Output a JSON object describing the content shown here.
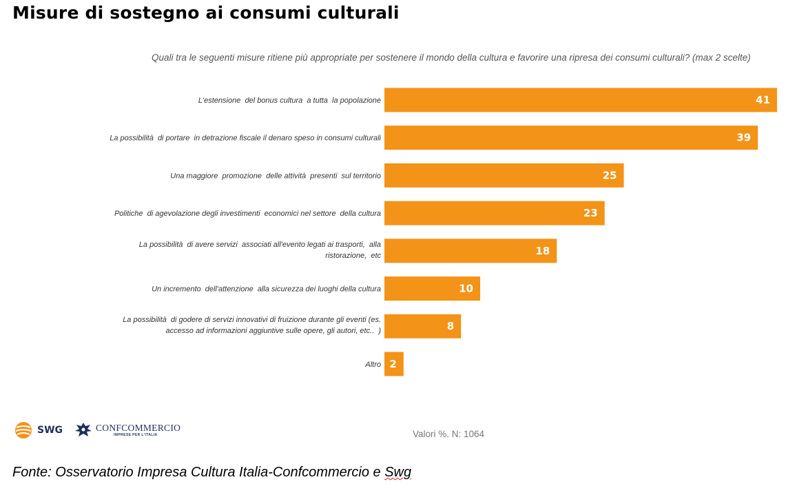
{
  "title": "Misure di sostegno ai consumi culturali",
  "question": "Quali tra le seguenti misure ritiene più appropriate per sostenere il mondo della cultura e favorire una ripresa dei consumi culturali? (max 2 scelte)",
  "chart_data": {
    "type": "bar",
    "orientation": "horizontal",
    "categories": [
      [
        "L'estensione  del bonus cultura  a tutta  la popolazione"
      ],
      [
        "La possibilità  di portare  in detrazione fiscale il denaro speso in consumi culturali"
      ],
      [
        "Una maggiore  promozione  delle attività  presenti  sul territorio"
      ],
      [
        "Politiche  di agevolazione degli investimenti  economici nel settore  della cultura"
      ],
      [
        "La possibilità  di avere servizi  associati all'evento legati ai trasporti,  alla",
        "ristorazione,  etc"
      ],
      [
        "Un incremento  dell'attenzione  alla sicurezza dei luoghi della cultura"
      ],
      [
        "La possibilità  di godere di servizi innovativi di fruizione durante gli eventi (es.",
        "accesso ad informazioni aggiuntive sulle opere, gli autori, etc..  )"
      ],
      [
        "Altro"
      ]
    ],
    "values": [
      41,
      39,
      25,
      23,
      18,
      10,
      8,
      2
    ],
    "bar_color": "#f39318",
    "value_label_color": "#ffffff",
    "grid": false,
    "legend": "none"
  },
  "footer": {
    "values_note": "Valori %. N: 1064",
    "source_prefix": "Fonte: Osservatorio Impresa Cultura Italia-Confcommercio e ",
    "source_swg": "Swg"
  },
  "logos": {
    "swg": "SWG",
    "confcommercio": "CONFCOMMERCIO",
    "confcommercio_sub": "IMPRESE PER L'ITALIA"
  },
  "colors": {
    "brand_orange": "#f39318",
    "brand_navy": "#1e2f5c"
  }
}
